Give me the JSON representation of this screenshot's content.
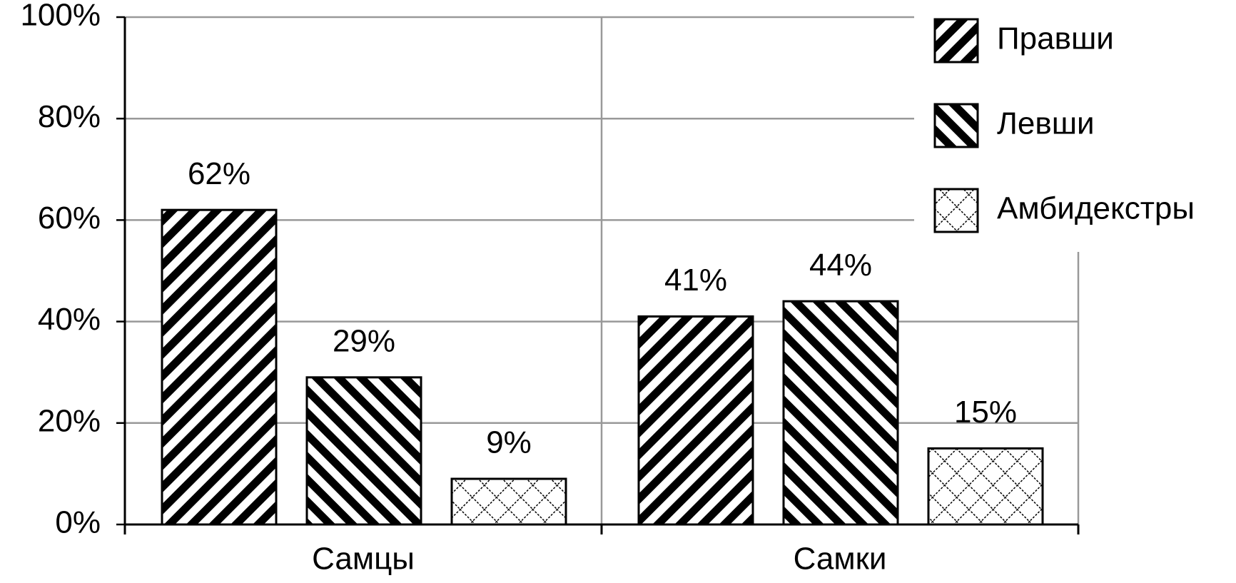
{
  "chart_data": {
    "type": "bar",
    "categories": [
      "Самцы",
      "Самки"
    ],
    "series": [
      {
        "name": "Правши",
        "color": "#000000",
        "pattern": "diagonal-up",
        "values": [
          62,
          41
        ],
        "value_labels": [
          "62%",
          "41%"
        ]
      },
      {
        "name": "Левши",
        "color": "#000000",
        "pattern": "diagonal-down",
        "values": [
          29,
          44
        ],
        "value_labels": [
          "29%",
          "44%"
        ]
      },
      {
        "name": "Амбидекстры",
        "color": "#000000",
        "pattern": "crosshatch",
        "values": [
          9,
          15
        ],
        "value_labels": [
          "9%",
          "15%"
        ]
      }
    ],
    "ylim": [
      0,
      100
    ],
    "yticks": [
      {
        "value": 0,
        "label": "0%"
      },
      {
        "value": 20,
        "label": "20%"
      },
      {
        "value": 40,
        "label": "40%"
      },
      {
        "value": 60,
        "label": "60%"
      },
      {
        "value": 80,
        "label": "80%"
      },
      {
        "value": 100,
        "label": "100%"
      }
    ],
    "grid": true,
    "legend": "top-right"
  }
}
